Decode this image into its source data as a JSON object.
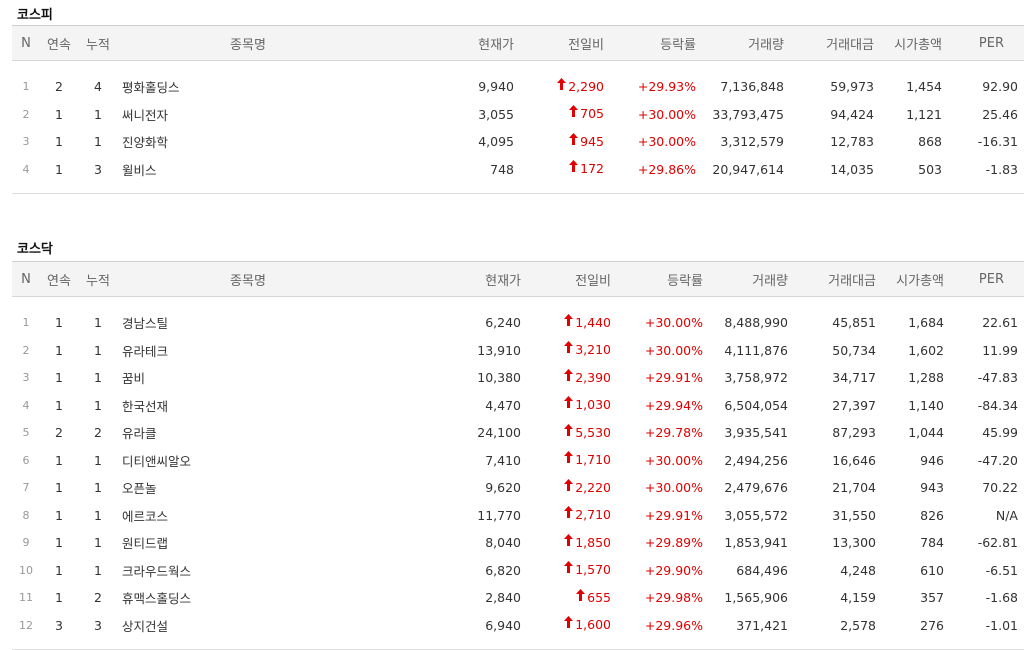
{
  "columns": {
    "n": "N",
    "consecutive": "연속",
    "cumulative": "누적",
    "name": "종목명",
    "price": "현재가",
    "change": "전일비",
    "rate": "등락률",
    "volume": "거래량",
    "amount": "거래대금",
    "market_cap": "시가총액",
    "per": "PER"
  },
  "kospi": {
    "title": "코스피",
    "rows": [
      {
        "n": "1",
        "consecutive": "2",
        "cumulative": "4",
        "name": "평화홀딩스",
        "price": "9,940",
        "change": "2,290",
        "rate": "+29.93%",
        "volume": "7,136,848",
        "amount": "59,973",
        "market_cap": "1,454",
        "per": "92.90"
      },
      {
        "n": "2",
        "consecutive": "1",
        "cumulative": "1",
        "name": "써니전자",
        "price": "3,055",
        "change": "705",
        "rate": "+30.00%",
        "volume": "33,793,475",
        "amount": "94,424",
        "market_cap": "1,121",
        "per": "25.46"
      },
      {
        "n": "3",
        "consecutive": "1",
        "cumulative": "1",
        "name": "진양화학",
        "price": "4,095",
        "change": "945",
        "rate": "+30.00%",
        "volume": "3,312,579",
        "amount": "12,783",
        "market_cap": "868",
        "per": "-16.31"
      },
      {
        "n": "4",
        "consecutive": "1",
        "cumulative": "3",
        "name": "윌비스",
        "price": "748",
        "change": "172",
        "rate": "+29.86%",
        "volume": "20,947,614",
        "amount": "14,035",
        "market_cap": "503",
        "per": "-1.83"
      }
    ]
  },
  "kosdaq": {
    "title": "코스닥",
    "rows": [
      {
        "n": "1",
        "consecutive": "1",
        "cumulative": "1",
        "name": "경남스틸",
        "price": "6,240",
        "change": "1,440",
        "rate": "+30.00%",
        "volume": "8,488,990",
        "amount": "45,851",
        "market_cap": "1,684",
        "per": "22.61"
      },
      {
        "n": "2",
        "consecutive": "1",
        "cumulative": "1",
        "name": "유라테크",
        "price": "13,910",
        "change": "3,210",
        "rate": "+30.00%",
        "volume": "4,111,876",
        "amount": "50,734",
        "market_cap": "1,602",
        "per": "11.99"
      },
      {
        "n": "3",
        "consecutive": "1",
        "cumulative": "1",
        "name": "꿈비",
        "price": "10,380",
        "change": "2,390",
        "rate": "+29.91%",
        "volume": "3,758,972",
        "amount": "34,717",
        "market_cap": "1,288",
        "per": "-47.83"
      },
      {
        "n": "4",
        "consecutive": "1",
        "cumulative": "1",
        "name": "한국선재",
        "price": "4,470",
        "change": "1,030",
        "rate": "+29.94%",
        "volume": "6,504,054",
        "amount": "27,397",
        "market_cap": "1,140",
        "per": "-84.34"
      },
      {
        "n": "5",
        "consecutive": "2",
        "cumulative": "2",
        "name": "유라클",
        "price": "24,100",
        "change": "5,530",
        "rate": "+29.78%",
        "volume": "3,935,541",
        "amount": "87,293",
        "market_cap": "1,044",
        "per": "45.99"
      },
      {
        "n": "6",
        "consecutive": "1",
        "cumulative": "1",
        "name": "디티앤씨알오",
        "price": "7,410",
        "change": "1,710",
        "rate": "+30.00%",
        "volume": "2,494,256",
        "amount": "16,646",
        "market_cap": "946",
        "per": "-47.20"
      },
      {
        "n": "7",
        "consecutive": "1",
        "cumulative": "1",
        "name": "오픈놀",
        "price": "9,620",
        "change": "2,220",
        "rate": "+30.00%",
        "volume": "2,479,676",
        "amount": "21,704",
        "market_cap": "943",
        "per": "70.22"
      },
      {
        "n": "8",
        "consecutive": "1",
        "cumulative": "1",
        "name": "에르코스",
        "price": "11,770",
        "change": "2,710",
        "rate": "+29.91%",
        "volume": "3,055,572",
        "amount": "31,550",
        "market_cap": "826",
        "per": "N/A"
      },
      {
        "n": "9",
        "consecutive": "1",
        "cumulative": "1",
        "name": "원티드랩",
        "price": "8,040",
        "change": "1,850",
        "rate": "+29.89%",
        "volume": "1,853,941",
        "amount": "13,300",
        "market_cap": "784",
        "per": "-62.81"
      },
      {
        "n": "10",
        "consecutive": "1",
        "cumulative": "1",
        "name": "크라우드웍스",
        "price": "6,820",
        "change": "1,570",
        "rate": "+29.90%",
        "volume": "684,496",
        "amount": "4,248",
        "market_cap": "610",
        "per": "-6.51"
      },
      {
        "n": "11",
        "consecutive": "1",
        "cumulative": "2",
        "name": "휴맥스홀딩스",
        "price": "2,840",
        "change": "655",
        "rate": "+29.98%",
        "volume": "1,565,906",
        "amount": "4,159",
        "market_cap": "357",
        "per": "-1.68"
      },
      {
        "n": "12",
        "consecutive": "3",
        "cumulative": "3",
        "name": "상지건설",
        "price": "6,940",
        "change": "1,600",
        "rate": "+29.96%",
        "volume": "371,421",
        "amount": "2,578",
        "market_cap": "276",
        "per": "-1.01"
      }
    ]
  },
  "icons": {
    "up_arrow": "up-arrow-icon"
  },
  "colors": {
    "rise": "#e00000",
    "header_bg": "#f4f4f4"
  }
}
